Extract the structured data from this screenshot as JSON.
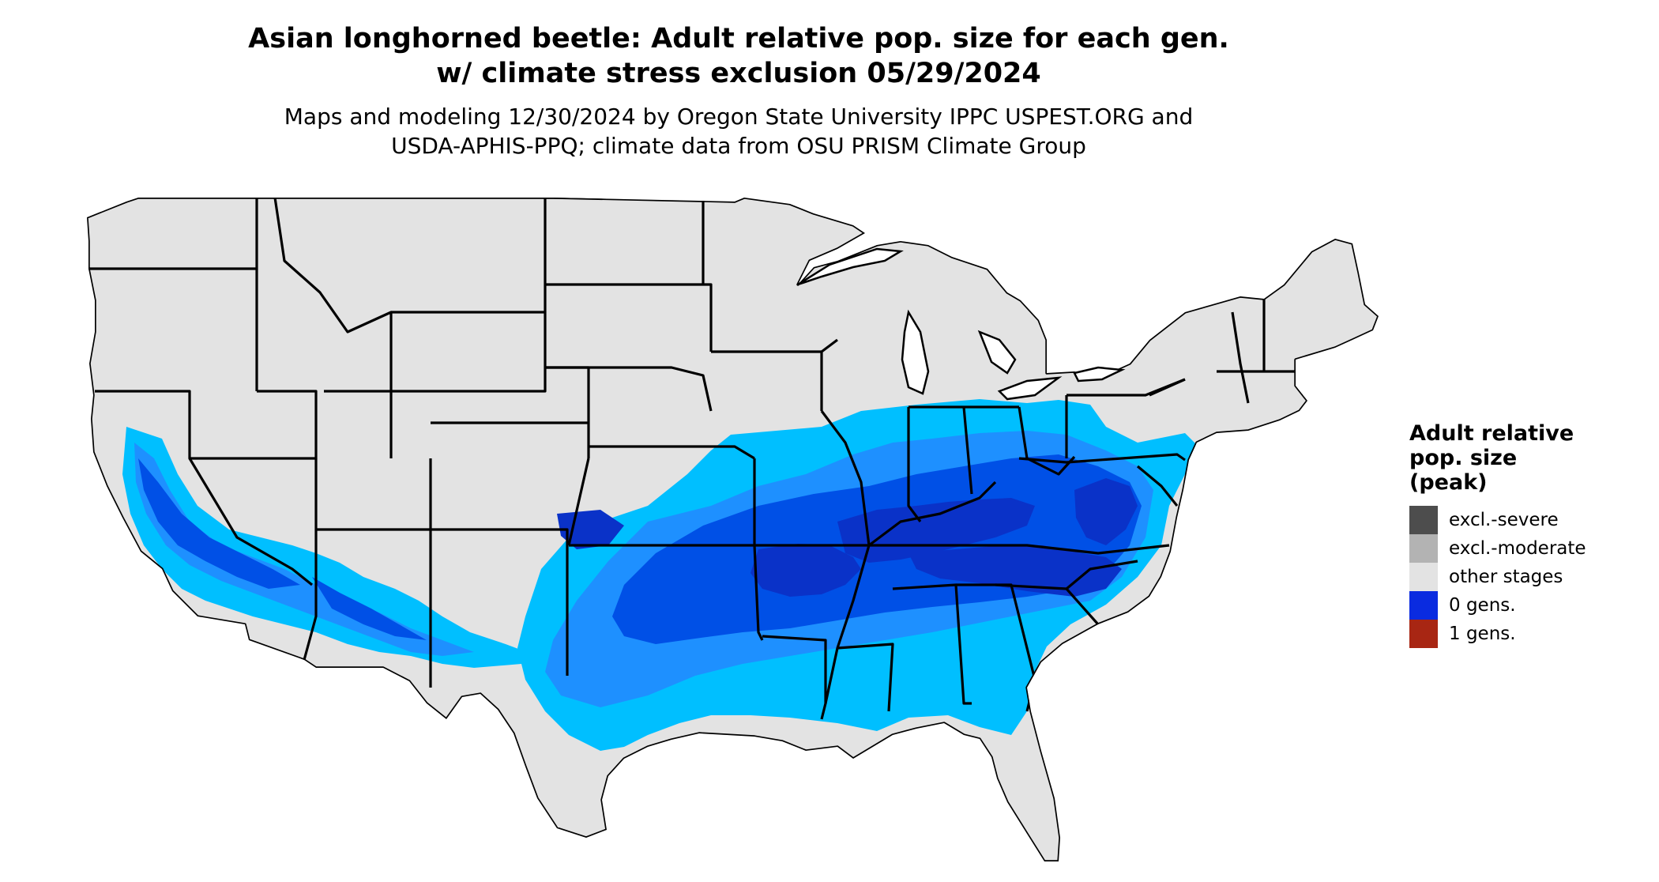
{
  "header": {
    "title_line1": "Asian longhorned beetle: Adult relative pop. size for each gen.",
    "title_line2": "w/ climate stress exclusion 05/29/2024",
    "subtitle_line1": "Maps and modeling 12/30/2024 by Oregon State University IPPC USPEST.ORG and",
    "subtitle_line2": "USDA-APHIS-PPQ; climate data from OSU PRISM Climate Group"
  },
  "map": {
    "region": "conterminous United States",
    "land_color": "#e3e3e3",
    "boundary_color": "#000000",
    "zone_colors": [
      "#00bfff",
      "#1e90ff",
      "#0050e6",
      "#0a32c8"
    ]
  },
  "legend": {
    "title_lines": [
      "Adult relative",
      "pop. size",
      "(peak)"
    ],
    "items": [
      {
        "label": "excl.-severe",
        "color": "#4d4d4d"
      },
      {
        "label": "excl.-moderate",
        "color": "#b3b3b3"
      },
      {
        "label": "other stages",
        "color": "#e3e3e3"
      },
      {
        "label": "0 gens.",
        "color": "#0a2be0"
      },
      {
        "label": "1 gens.",
        "color": "#a82613"
      }
    ]
  }
}
